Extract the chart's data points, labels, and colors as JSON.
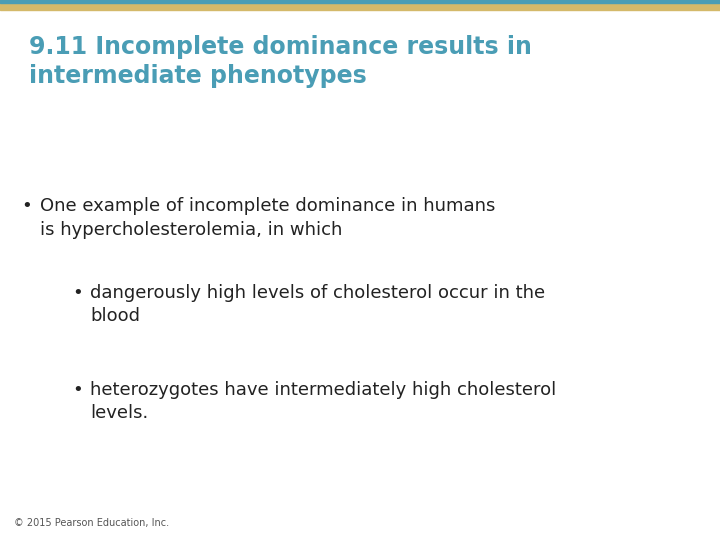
{
  "title_line1": "9.11 Incomplete dominance results in",
  "title_line2": "intermediate phenotypes",
  "title_color": "#4a9db5",
  "background_color": "#ffffff",
  "top_bar_gold_color": "#d4b96a",
  "top_bar_blue_color": "#4a9db5",
  "body_text_color": "#222222",
  "bullet1": "One example of incomplete dominance in humans\nis hypercholesterolemia, in which",
  "sub_bullet1": "dangerously high levels of cholesterol occur in the\nblood",
  "sub_bullet2": "heterozygotes have intermediately high cholesterol\nlevels.",
  "footer": "© 2015 Pearson Education, Inc.",
  "title_fontsize": 17,
  "body_fontsize": 13,
  "footer_fontsize": 7
}
